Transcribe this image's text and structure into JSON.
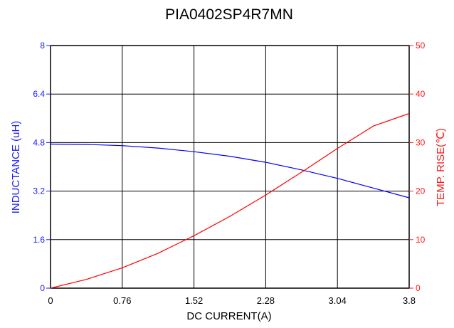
{
  "chart_data": {
    "type": "line",
    "title": "PIA0402SP4R7MN",
    "xlabel": "DC CURRENT(A)",
    "ylabel_left": "INDUCTANCE (uH)",
    "ylabel_right": "TEMP. RISE(℃)",
    "xlim": [
      0,
      3.8
    ],
    "ylim_left": [
      0,
      8
    ],
    "ylim_right": [
      0,
      50
    ],
    "grid": true,
    "x_ticks": [
      "0",
      "0.76",
      "1.52",
      "2.28",
      "3.04",
      "3.8"
    ],
    "y_left_ticks": [
      "0",
      "1.6",
      "3.2",
      "4.8",
      "6.4",
      "8"
    ],
    "y_right_ticks": [
      "0",
      "10",
      "20",
      "30",
      "40",
      "50"
    ],
    "series": [
      {
        "axis": "left",
        "color": "#0000ff",
        "x": [
          0,
          0.38,
          0.76,
          1.14,
          1.52,
          1.9,
          2.28,
          2.66,
          3.04,
          3.42,
          3.8
        ],
        "y": [
          4.75,
          4.74,
          4.7,
          4.62,
          4.5,
          4.35,
          4.15,
          3.9,
          3.62,
          3.3,
          2.98
        ]
      },
      {
        "axis": "right",
        "color": "#ff0000",
        "x": [
          0,
          0.38,
          0.76,
          1.14,
          1.52,
          1.9,
          2.28,
          2.66,
          3.04,
          3.42,
          3.8
        ],
        "y": [
          0,
          1.8,
          4.2,
          7.2,
          10.8,
          14.8,
          19.2,
          23.9,
          28.8,
          33.4,
          36
        ]
      }
    ]
  }
}
